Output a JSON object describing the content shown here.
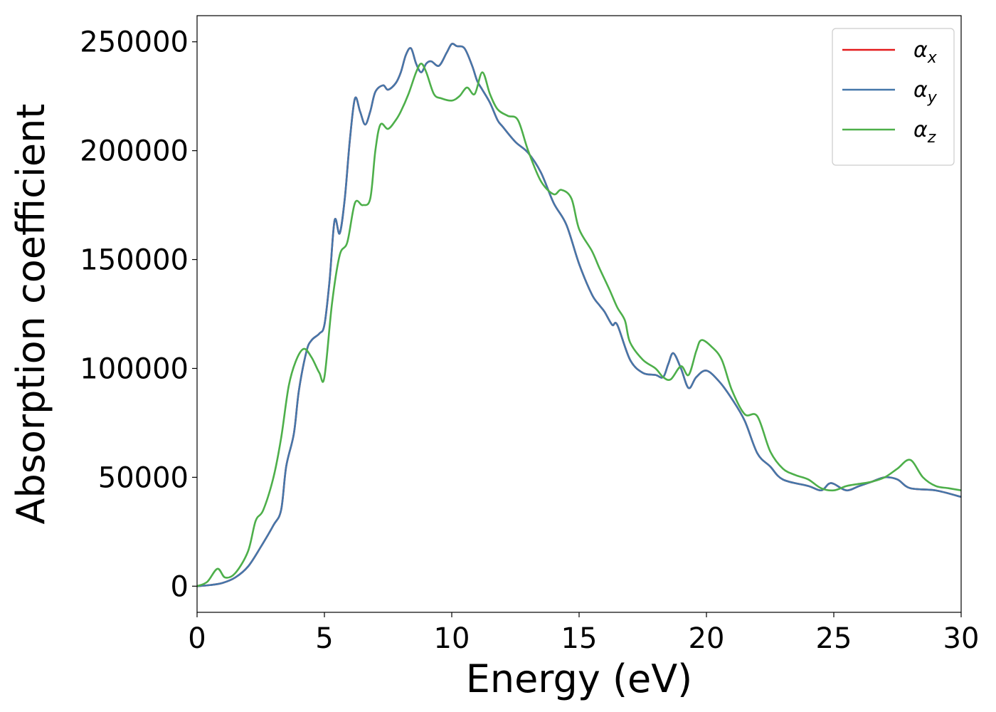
{
  "chart_data": {
    "type": "line",
    "xlabel": "Energy (eV)",
    "ylabel": "Absorption coefficient",
    "xlim": [
      0,
      30
    ],
    "ylim": [
      -12000,
      262000
    ],
    "xticks": [
      0,
      5,
      10,
      15,
      20,
      25,
      30
    ],
    "yticks": [
      0,
      50000,
      100000,
      150000,
      200000,
      250000
    ],
    "xtick_labels": [
      "0",
      "5",
      "10",
      "15",
      "20",
      "25",
      "30"
    ],
    "ytick_labels": [
      "0",
      "50000",
      "100000",
      "150000",
      "200000",
      "250000"
    ],
    "grid": false,
    "legend_position": "top-right",
    "series": [
      {
        "name": "α",
        "subscript": "x",
        "color": "#e41a1c",
        "x": [
          0,
          0.5,
          1.0,
          1.5,
          2.0,
          2.5,
          3.0,
          3.3,
          3.5,
          3.8,
          4.0,
          4.3,
          4.5,
          4.8,
          5.0,
          5.2,
          5.4,
          5.6,
          5.8,
          6.0,
          6.2,
          6.4,
          6.6,
          6.8,
          7.0,
          7.3,
          7.5,
          7.8,
          8.0,
          8.2,
          8.4,
          8.6,
          8.8,
          9.0,
          9.2,
          9.5,
          9.8,
          10.0,
          10.2,
          10.5,
          10.8,
          11.0,
          11.2,
          11.5,
          11.8,
          12.0,
          12.5,
          13.0,
          13.5,
          14.0,
          14.5,
          15.0,
          15.5,
          15.8,
          16.0,
          16.3,
          16.5,
          17.0,
          17.5,
          18.0,
          18.3,
          18.5,
          18.7,
          19.0,
          19.3,
          19.6,
          20.0,
          20.5,
          21.0,
          21.5,
          22.0,
          22.5,
          23.0,
          24.0,
          24.5,
          24.8,
          25.0,
          25.5,
          26.0,
          26.5,
          27.0,
          27.5,
          28.0,
          29.0,
          30.0
        ],
        "y": [
          0,
          500,
          1500,
          4000,
          9000,
          18000,
          28000,
          35000,
          55000,
          70000,
          90000,
          108000,
          113000,
          116000,
          120000,
          140000,
          168000,
          162000,
          178000,
          205000,
          224000,
          218000,
          212000,
          218000,
          227000,
          230000,
          228000,
          231000,
          236000,
          244000,
          247000,
          240000,
          236000,
          240000,
          241000,
          239000,
          245000,
          249000,
          248000,
          247000,
          239000,
          232000,
          228000,
          222000,
          214000,
          211000,
          204000,
          199000,
          190000,
          176000,
          166000,
          148000,
          134000,
          129000,
          126000,
          120000,
          120000,
          104000,
          98000,
          97000,
          96000,
          102000,
          107000,
          100000,
          91000,
          96000,
          99000,
          94000,
          86000,
          76000,
          61000,
          55000,
          49000,
          46000,
          44000,
          47000,
          47000,
          44000,
          46000,
          48000,
          50000,
          49000,
          45000,
          44000,
          41000
        ]
      },
      {
        "name": "α",
        "subscript": "y",
        "color": "#4477aa",
        "x": [
          0,
          0.5,
          1.0,
          1.5,
          2.0,
          2.5,
          3.0,
          3.3,
          3.5,
          3.8,
          4.0,
          4.3,
          4.5,
          4.8,
          5.0,
          5.2,
          5.4,
          5.6,
          5.8,
          6.0,
          6.2,
          6.4,
          6.6,
          6.8,
          7.0,
          7.3,
          7.5,
          7.8,
          8.0,
          8.2,
          8.4,
          8.6,
          8.8,
          9.0,
          9.2,
          9.5,
          9.8,
          10.0,
          10.2,
          10.5,
          10.8,
          11.0,
          11.2,
          11.5,
          11.8,
          12.0,
          12.5,
          13.0,
          13.5,
          14.0,
          14.5,
          15.0,
          15.5,
          15.8,
          16.0,
          16.3,
          16.5,
          17.0,
          17.5,
          18.0,
          18.3,
          18.5,
          18.7,
          19.0,
          19.3,
          19.6,
          20.0,
          20.5,
          21.0,
          21.5,
          22.0,
          22.5,
          23.0,
          24.0,
          24.5,
          24.8,
          25.0,
          25.5,
          26.0,
          26.5,
          27.0,
          27.5,
          28.0,
          29.0,
          30.0
        ],
        "y": [
          0,
          500,
          1500,
          4000,
          9000,
          18000,
          28000,
          35000,
          55000,
          70000,
          90000,
          108000,
          113000,
          116000,
          120000,
          140000,
          168000,
          162000,
          178000,
          205000,
          224000,
          218000,
          212000,
          218000,
          227000,
          230000,
          228000,
          231000,
          236000,
          244000,
          247000,
          240000,
          236000,
          240000,
          241000,
          239000,
          245000,
          249000,
          248000,
          247000,
          239000,
          232000,
          228000,
          222000,
          214000,
          211000,
          204000,
          199000,
          190000,
          176000,
          166000,
          148000,
          134000,
          129000,
          126000,
          120000,
          120000,
          104000,
          98000,
          97000,
          96000,
          102000,
          107000,
          100000,
          91000,
          96000,
          99000,
          94000,
          86000,
          76000,
          61000,
          55000,
          49000,
          46000,
          44000,
          47000,
          47000,
          44000,
          46000,
          48000,
          50000,
          49000,
          45000,
          44000,
          41000
        ]
      },
      {
        "name": "α",
        "subscript": "z",
        "color": "#4daf4a",
        "x": [
          0,
          0.4,
          0.8,
          1.1,
          1.5,
          2.0,
          2.3,
          2.6,
          3.0,
          3.3,
          3.6,
          3.9,
          4.2,
          4.5,
          4.8,
          5.0,
          5.3,
          5.6,
          5.9,
          6.2,
          6.5,
          6.8,
          7.0,
          7.2,
          7.5,
          7.8,
          8.0,
          8.3,
          8.6,
          8.8,
          9.0,
          9.3,
          9.6,
          10.0,
          10.3,
          10.6,
          10.9,
          11.2,
          11.5,
          11.8,
          12.2,
          12.6,
          13.0,
          13.5,
          14.0,
          14.3,
          14.7,
          15.0,
          15.5,
          15.8,
          16.2,
          16.5,
          16.8,
          17.0,
          17.5,
          18.0,
          18.3,
          18.6,
          19.0,
          19.3,
          19.6,
          19.8,
          20.2,
          20.6,
          21.0,
          21.5,
          22.0,
          22.5,
          23.0,
          23.5,
          24.0,
          24.5,
          25.0,
          25.5,
          26.0,
          26.5,
          27.0,
          27.5,
          28.0,
          28.5,
          29.0,
          29.5,
          30.0
        ],
        "y": [
          0,
          2000,
          8000,
          4000,
          6000,
          16000,
          30000,
          35000,
          50000,
          68000,
          92000,
          104000,
          109000,
          105000,
          98000,
          96000,
          130000,
          152000,
          158000,
          176000,
          175000,
          178000,
          200000,
          212000,
          210000,
          214000,
          218000,
          226000,
          236000,
          240000,
          236000,
          226000,
          224000,
          223000,
          225000,
          229000,
          226000,
          236000,
          226000,
          219000,
          216000,
          214000,
          200000,
          186000,
          180000,
          182000,
          178000,
          164000,
          154000,
          146000,
          136000,
          128000,
          122000,
          112000,
          104000,
          100000,
          96000,
          95000,
          101000,
          97000,
          108000,
          113000,
          110000,
          104000,
          90000,
          79000,
          78000,
          62000,
          54000,
          51000,
          49000,
          45000,
          44000,
          46000,
          47000,
          48000,
          50000,
          54000,
          58000,
          50000,
          46000,
          45000,
          44000
        ]
      }
    ]
  }
}
